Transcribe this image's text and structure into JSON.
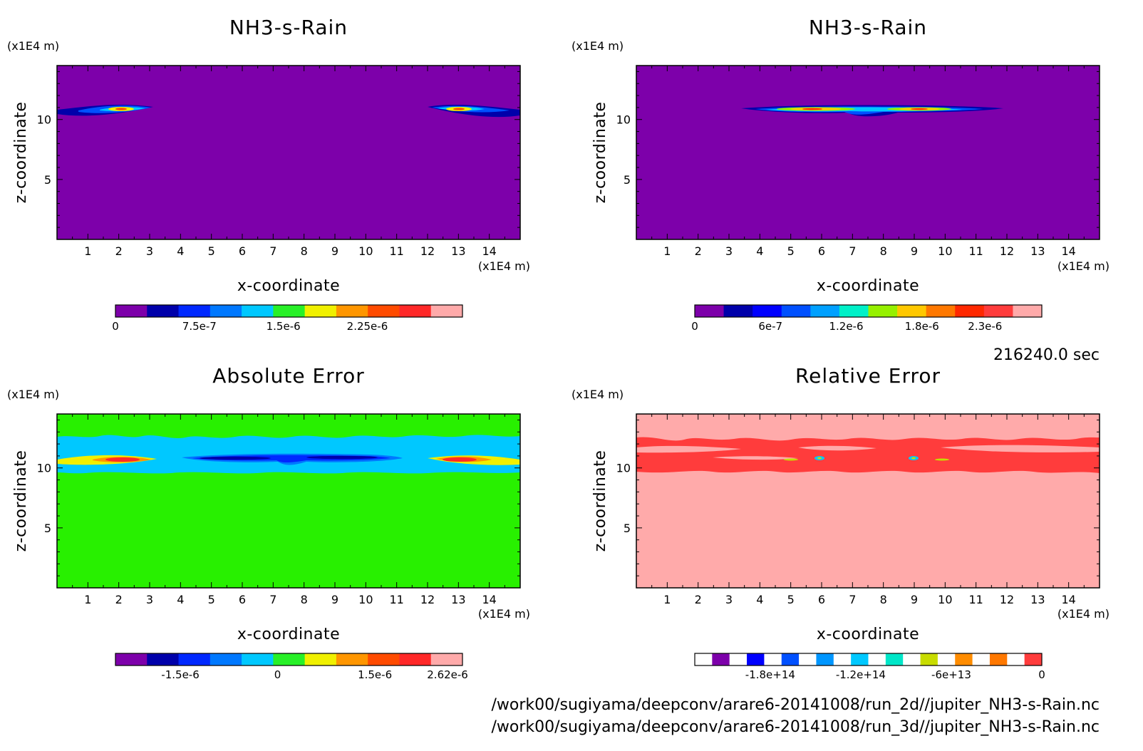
{
  "time_label": "216240.0 sec",
  "footer": {
    "line1": "/work00/sugiyama/deepconv/arare6-20141008/run_2d//jupiter_NH3-s-Rain.nc",
    "line2": "/work00/sugiyama/deepconv/arare6-20141008/run_3d//jupiter_NH3-s-Rain.nc"
  },
  "chart_data": [
    {
      "type": "heatmap",
      "title": "NH3-s-Rain",
      "xlabel": "x-coordinate",
      "ylabel": "z-coordinate",
      "x_unit": "(x1E4 m)",
      "y_unit": "(x1E4 m)",
      "xlim": [
        0,
        15
      ],
      "ylim": [
        0,
        14.5
      ],
      "x_ticks": [
        "1",
        "2",
        "3",
        "4",
        "5",
        "6",
        "7",
        "8",
        "9",
        "10",
        "11",
        "12",
        "13",
        "14"
      ],
      "y_ticks": [
        "5",
        "10"
      ],
      "background_color": "#7d00aa",
      "features": [
        {
          "x0": 0,
          "x1": 3.1,
          "z": 10.8,
          "max": 2.6e-06
        },
        {
          "x0": 12.0,
          "x1": 15,
          "z": 10.8,
          "max": 2.6e-06
        }
      ],
      "colorbar": {
        "colors": [
          "#7d00aa",
          "#0000aa",
          "#0028ff",
          "#0078ff",
          "#00c8ff",
          "#28f028",
          "#f0f000",
          "#ff9600",
          "#ff4b00",
          "#ff2828",
          "#ffaaaa"
        ],
        "tick_labels": [
          "0",
          "7.5e-7",
          "1.5e-6",
          "2.25e-6"
        ],
        "tick_values": [
          0,
          7.5e-07,
          1.5e-06,
          2.25e-06
        ],
        "range": [
          0,
          3.1e-06
        ]
      }
    },
    {
      "type": "heatmap",
      "title": "NH3-s-Rain",
      "xlabel": "x-coordinate",
      "ylabel": "z-coordinate",
      "x_unit": "(x1E4 m)",
      "y_unit": "(x1E4 m)",
      "xlim": [
        0,
        15
      ],
      "ylim": [
        0,
        14.5
      ],
      "x_ticks": [
        "1",
        "2",
        "3",
        "4",
        "5",
        "6",
        "7",
        "8",
        "9",
        "10",
        "11",
        "12",
        "13",
        "14"
      ],
      "y_ticks": [
        "5",
        "10"
      ],
      "background_color": "#7d00aa",
      "features": [
        {
          "x0": 3.4,
          "x1": 11.8,
          "z": 10.9,
          "max": 2.3e-06
        }
      ],
      "colorbar": {
        "colors": [
          "#7d00aa",
          "#0000aa",
          "#0000ff",
          "#0050ff",
          "#00a0ff",
          "#00f0c8",
          "#96f000",
          "#ffc800",
          "#ff7800",
          "#ff2800",
          "#ff3c3c",
          "#ffaaaa"
        ],
        "tick_labels": [
          "0",
          "6e-7",
          "1.2e-6",
          "1.8e-6",
          "2.3e-6"
        ],
        "tick_values": [
          0,
          6e-07,
          1.2e-06,
          1.8e-06,
          2.3e-06
        ],
        "range": [
          0,
          2.75e-06
        ]
      }
    },
    {
      "type": "heatmap",
      "title": "Absolute Error",
      "xlabel": "x-coordinate",
      "ylabel": "z-coordinate",
      "x_unit": "(x1E4 m)",
      "y_unit": "(x1E4 m)",
      "xlim": [
        0,
        15
      ],
      "ylim": [
        0,
        14.5
      ],
      "x_ticks": [
        "1",
        "2",
        "3",
        "4",
        "5",
        "6",
        "7",
        "8",
        "9",
        "10",
        "11",
        "12",
        "13",
        "14"
      ],
      "y_ticks": [
        "5",
        "10"
      ],
      "background_color": "#28f000",
      "features": [
        {
          "x0": 0,
          "x1": 15,
          "z0": 9.8,
          "z1": 12.8,
          "value": -3e-07
        },
        {
          "x0": 0,
          "x1": 3.1,
          "z": 10.8,
          "max": 2.62e-06
        },
        {
          "x0": 12.0,
          "x1": 15,
          "z": 10.8,
          "max": 2.62e-06
        },
        {
          "x0": 4.2,
          "x1": 11.2,
          "z": 10.9,
          "min": -2.2e-06
        }
      ],
      "colorbar": {
        "colors": [
          "#7d00aa",
          "#0000aa",
          "#0028ff",
          "#0078ff",
          "#00c8ff",
          "#28f028",
          "#f0f000",
          "#ff9600",
          "#ff4b00",
          "#ff2828",
          "#ffaaaa"
        ],
        "tick_labels": [
          "-1.5e-6",
          "0",
          "1.5e-6",
          "2.62e-6"
        ],
        "tick_values": [
          -1.5e-06,
          0,
          1.5e-06,
          2.62e-06
        ],
        "range": [
          -2.5e-06,
          2.85e-06
        ]
      }
    },
    {
      "type": "heatmap",
      "title": "Relative Error",
      "xlabel": "x-coordinate",
      "ylabel": "z-coordinate",
      "x_unit": "(x1E4 m)",
      "y_unit": "(x1E4 m)",
      "xlim": [
        0,
        15
      ],
      "ylim": [
        0,
        14.5
      ],
      "x_ticks": [
        "1",
        "2",
        "3",
        "4",
        "5",
        "6",
        "7",
        "8",
        "9",
        "10",
        "11",
        "12",
        "13",
        "14"
      ],
      "y_ticks": [
        "5",
        "10"
      ],
      "background_color": "#ffaaaa",
      "features": [
        {
          "x0": 0,
          "x1": 15,
          "z0": 9.8,
          "z1": 12.8,
          "value": -10000000000000.0
        },
        {
          "x": 5.85,
          "z": 11.0,
          "min": -200000000000000.0
        },
        {
          "x": 9.05,
          "z": 11.0,
          "min": -200000000000000.0
        }
      ],
      "colorbar": {
        "colors": [
          "#ffffff",
          "#7d00aa",
          "#ffffff",
          "#0000ff",
          "#ffffff",
          "#0050ff",
          "#ffffff",
          "#0096ff",
          "#ffffff",
          "#00c8ff",
          "#ffffff",
          "#00e6c8",
          "#ffffff",
          "#c8dc00",
          "#ffffff",
          "#ff8c00",
          "#ffffff",
          "#ff7800",
          "#ffffff",
          "#ff3c3c"
        ],
        "tick_labels": [
          "-1.8e+14",
          "-1.2e+14",
          "-6e+13",
          "0"
        ],
        "tick_values": [
          -180000000000000.0,
          -120000000000000.0,
          -60000000000000.0,
          0
        ],
        "range": [
          -230000000000000.0,
          0
        ]
      }
    }
  ]
}
